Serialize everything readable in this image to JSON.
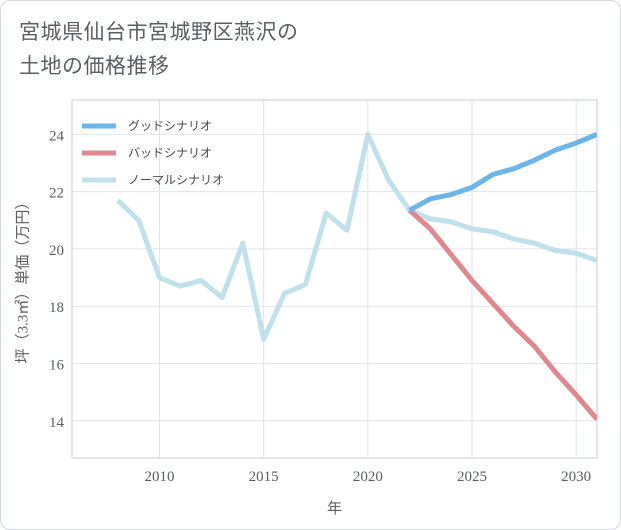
{
  "title": {
    "line1": "宮城県仙台市宮城野区燕沢の",
    "line2": "土地の価格推移"
  },
  "chart_data": {
    "type": "line",
    "xlabel": "年",
    "ylabel": "坪（3.3㎡）単価（万円）",
    "xlim": [
      2005.8,
      2031
    ],
    "ylim": [
      12.7,
      25.2
    ],
    "xticks": [
      2010,
      2015,
      2020,
      2025,
      2030
    ],
    "yticks": [
      14,
      16,
      18,
      20,
      22,
      24
    ],
    "grid": true,
    "legend_position": "top-left",
    "series": [
      {
        "name": "グッドシナリオ",
        "color": "#6db5e8",
        "x": [
          2022,
          2023,
          2024,
          2025,
          2026,
          2027,
          2028,
          2029,
          2030,
          2031
        ],
        "values": [
          21.35,
          21.75,
          21.9,
          22.15,
          22.6,
          22.8,
          23.1,
          23.45,
          23.7,
          24.0
        ]
      },
      {
        "name": "バッドシナリオ",
        "color": "#e0888f",
        "x": [
          2022,
          2023,
          2024,
          2025,
          2026,
          2027,
          2028,
          2029,
          2030,
          2031
        ],
        "values": [
          21.35,
          20.7,
          19.8,
          18.9,
          18.1,
          17.3,
          16.6,
          15.7,
          14.9,
          14.05
        ]
      },
      {
        "name": "ノーマルシナリオ",
        "color": "#c0e0ec",
        "x": [
          2008,
          2009,
          2010,
          2011,
          2012,
          2013,
          2014,
          2015,
          2016,
          2017,
          2018,
          2019,
          2020,
          2021,
          2022,
          2023,
          2024,
          2025,
          2026,
          2027,
          2028,
          2029,
          2030,
          2031
        ],
        "values": [
          21.7,
          21.0,
          19.0,
          18.7,
          18.9,
          18.3,
          20.2,
          16.85,
          18.45,
          18.75,
          21.25,
          20.65,
          24.0,
          22.4,
          21.35,
          21.05,
          20.95,
          20.7,
          20.6,
          20.35,
          20.2,
          19.95,
          19.85,
          19.6
        ]
      }
    ]
  }
}
